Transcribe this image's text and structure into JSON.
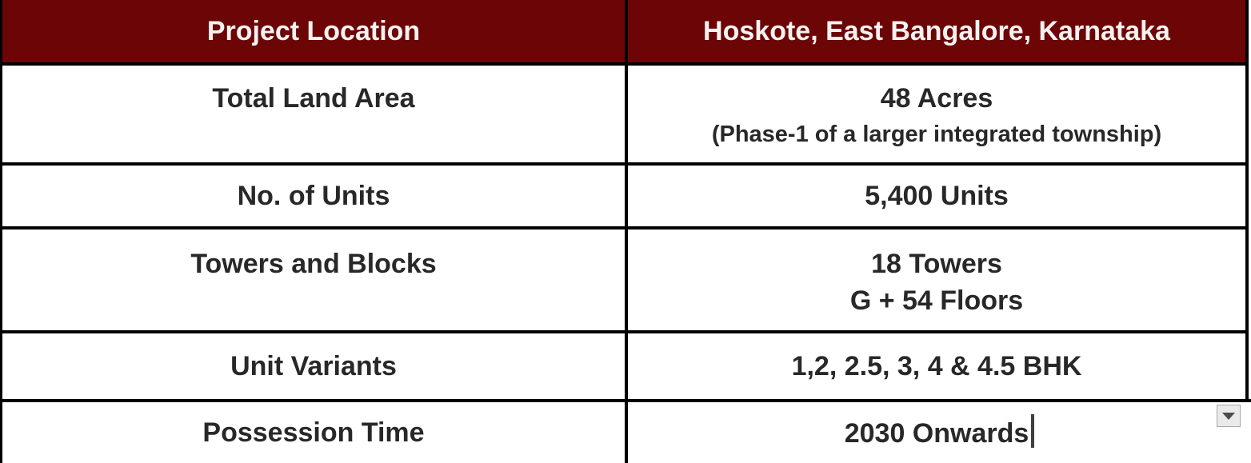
{
  "table": {
    "header": {
      "col1": "Project Location",
      "col2": "Hoskote, East Bangalore, Karnataka"
    },
    "rows": [
      {
        "label": "Total Land Area",
        "value": "48 Acres",
        "value2": "(Phase-1 of a larger integrated township)"
      },
      {
        "label": "No. of Units",
        "value": "5,400 Units"
      },
      {
        "label": "Towers and Blocks",
        "value": "18 Towers",
        "value2": "G + 54 Floors"
      },
      {
        "label": "Unit Variants",
        "value": "1,2, 2.5, 3, 4 & 4.5 BHK"
      },
      {
        "label": "Possession Time",
        "value": "2030 Onwards"
      }
    ]
  },
  "widgets": {
    "scroll_button": "scroll-down"
  },
  "colors": {
    "header_bg": "#6c0606",
    "header_text": "#f6f2f1",
    "body_text": "#282828",
    "border_color": "#000000",
    "caret_color": "#3f3f3f",
    "btn_bg": "#eaeaea",
    "btn_border": "#a8a8a8",
    "btn_arrow": "#4c4c4c"
  }
}
